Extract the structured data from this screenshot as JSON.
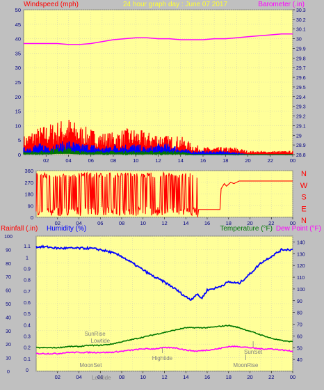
{
  "header": {
    "left_title": "Windspeed (mph)",
    "center_title": "24 hour graph day : June 07 2017",
    "right_title": "Barometer (.in)"
  },
  "x_ticks": [
    "02",
    "04",
    "06",
    "08",
    "10",
    "12",
    "14",
    "16",
    "18",
    "20",
    "22",
    "00"
  ],
  "colors": {
    "background": "#c0c0c0",
    "plot_bg": "#ffff99",
    "grid": "#d4d4b0",
    "red": "#ff0000",
    "blue": "#0000ff",
    "green": "#007700",
    "magenta": "#ff00ff",
    "wind_dir_red": "#ff0000",
    "title_yellow": "#ffff33"
  },
  "chart_data": [
    {
      "type": "line",
      "name": "wind-barometer",
      "title": "24 hour graph day : June 07 2017",
      "ylabel_left": "Windspeed (mph)",
      "ylabel_right": "Barometer (.in)",
      "x_range_hours": [
        0,
        24
      ],
      "ylim_left": [
        0,
        50
      ],
      "ylim_right": [
        28.8,
        30.3
      ],
      "y_ticks_left": [
        "0",
        "5",
        "10",
        "15",
        "20",
        "25",
        "30",
        "35",
        "40",
        "45",
        "50"
      ],
      "y_ticks_right": [
        "28.8",
        "28.9",
        "29",
        "29.1",
        "29.2",
        "29.3",
        "29.4",
        "29.5",
        "29.6",
        "29.7",
        "29.8",
        "29.9",
        "30",
        "30.1",
        "30.2",
        "30.3"
      ],
      "grid": true,
      "series": [
        {
          "axis": "right",
          "color": "#ff00ff",
          "x": [
            0,
            1,
            2,
            3,
            4,
            5,
            6,
            7,
            8,
            9,
            10,
            11,
            12,
            13,
            14,
            15,
            16,
            17,
            18,
            19,
            20,
            21,
            22,
            23,
            24
          ],
          "values": [
            29.95,
            29.95,
            29.95,
            29.95,
            29.94,
            29.94,
            29.95,
            29.97,
            29.99,
            30.0,
            30.01,
            30.01,
            30.0,
            30.0,
            29.99,
            29.99,
            29.99,
            30.0,
            30.0,
            30.01,
            30.02,
            30.03,
            30.04,
            30.05,
            30.05
          ]
        },
        {
          "axis": "left",
          "color": "#ff0000",
          "style": "gust",
          "x": [
            0,
            1,
            2,
            3,
            4,
            5,
            6,
            7,
            8,
            9,
            10,
            11,
            12,
            13,
            14,
            15,
            16,
            17,
            18,
            19,
            20,
            21,
            22,
            23,
            24
          ],
          "values": [
            5,
            7,
            8,
            9,
            10,
            8,
            7,
            6,
            6,
            7,
            7,
            6,
            6,
            5,
            5,
            3,
            2,
            2,
            2,
            2,
            1,
            1,
            1,
            1,
            1
          ]
        },
        {
          "axis": "left",
          "color": "#0000ff",
          "style": "avg",
          "x": [
            0,
            1,
            2,
            3,
            4,
            5,
            6,
            7,
            8,
            9,
            10,
            11,
            12,
            13,
            14,
            15,
            16,
            17,
            18,
            19,
            20,
            21,
            22,
            23,
            24
          ],
          "values": [
            2,
            3,
            3,
            3,
            4,
            3,
            3,
            2,
            3,
            3,
            3,
            2,
            3,
            3,
            2,
            1,
            1,
            1,
            1,
            0.5,
            0,
            0,
            0,
            0,
            0
          ]
        },
        {
          "axis": "left",
          "color": "#007700",
          "style": "min",
          "x": [
            0,
            1,
            2,
            3,
            4,
            5,
            6,
            7,
            8,
            9,
            10,
            11,
            12,
            13,
            14,
            15,
            16,
            17,
            18,
            19,
            20,
            21,
            22,
            23,
            24
          ],
          "values": [
            1,
            1,
            1,
            2,
            2,
            1,
            1,
            1,
            1,
            1,
            1,
            1,
            1,
            1,
            1,
            0,
            0,
            0,
            0,
            0,
            0,
            0,
            0,
            0,
            0
          ]
        }
      ]
    },
    {
      "type": "line",
      "name": "wind-direction",
      "ylim": [
        0,
        360
      ],
      "y_ticks": [
        "0",
        "90",
        "180",
        "270",
        "360"
      ],
      "direction_labels": [
        "N",
        "W",
        "S",
        "E",
        "N"
      ],
      "series": [
        {
          "color": "#ff0000",
          "x": [
            0,
            15.1,
            15.2,
            16.5,
            17.2,
            17.3,
            17.6,
            17.8,
            18.2,
            18.5,
            19.0,
            24
          ],
          "values": [
            180,
            0,
            60,
            60,
            60,
            220,
            260,
            240,
            270,
            260,
            280,
            280
          ]
        }
      ]
    },
    {
      "type": "line",
      "name": "rain-humidity-temperature",
      "ylabel_left_outer": "Rainfall (.in)",
      "ylabel_left_inner": "Humidity (%)",
      "ylabel_right_inner": "Temperature (°F)",
      "ylabel_right_outer": "Dew Point (°F)",
      "ylim_rain": [
        0,
        1.2
      ],
      "ylim_humidity": [
        0,
        100
      ],
      "ylim_temp": [
        30,
        145
      ],
      "y_ticks_humidity": [
        "0",
        "10",
        "20",
        "30",
        "40",
        "50",
        "60",
        "70",
        "80",
        "90",
        "100"
      ],
      "y_ticks_rain": [
        "0",
        "0.1",
        "0.2",
        "0.3",
        "0.4",
        "0.5",
        "0.6",
        "0.7",
        "0.8",
        "0.9",
        "1",
        "1.1"
      ],
      "y_ticks_temp": [
        "40",
        "50",
        "60",
        "70",
        "80",
        "90",
        "100",
        "110",
        "120",
        "130",
        "140"
      ],
      "series": [
        {
          "name": "Humidity (%)",
          "color": "#0000ff",
          "x": [
            0,
            1,
            2,
            3,
            4,
            5,
            6,
            7,
            8,
            9,
            10,
            11,
            12,
            13,
            14,
            14.5,
            15,
            15.5,
            16,
            17,
            18,
            19,
            20,
            21,
            22,
            23,
            24
          ],
          "values": [
            92,
            92,
            91,
            91,
            91,
            91,
            90,
            88,
            85,
            80,
            75,
            70,
            66,
            61,
            55,
            53,
            57,
            54,
            60,
            62,
            66,
            65,
            72,
            80,
            85,
            90,
            90
          ]
        },
        {
          "name": "Temperature (°F)",
          "color": "#007700",
          "x": [
            0,
            1,
            2,
            3,
            4,
            5,
            6,
            7,
            8,
            9,
            10,
            11,
            12,
            13,
            14,
            15,
            16,
            17,
            18,
            19,
            20,
            21,
            22,
            23,
            24
          ],
          "values": [
            50,
            50,
            50,
            51,
            51,
            52,
            52,
            53,
            55,
            57,
            59,
            61,
            63,
            65,
            67,
            67,
            67,
            68,
            69,
            67,
            64,
            61,
            58,
            56,
            55
          ]
        },
        {
          "name": "Dew Point (°F)",
          "color": "#ff00ff",
          "x": [
            0,
            1,
            2,
            3,
            4,
            5,
            6,
            7,
            8,
            9,
            10,
            11,
            12,
            13,
            14,
            15,
            16,
            17,
            18,
            19,
            20,
            21,
            22,
            23,
            24
          ],
          "values": [
            45,
            45,
            45,
            46,
            46,
            46,
            46,
            46,
            47,
            48,
            49,
            49,
            50,
            50,
            48,
            47,
            48,
            49,
            51,
            51,
            50,
            49,
            49,
            48,
            47
          ]
        }
      ],
      "annotations": [
        {
          "text": "SunRise",
          "x": 5.5
        },
        {
          "text": "Lowtide",
          "x": 6.0
        },
        {
          "text": "MoonSet",
          "x": 5.1
        },
        {
          "text": "Lowtide",
          "x": 6.1
        },
        {
          "text": "Hightide",
          "x": 11.8
        },
        {
          "text": "SunSet",
          "x": 20.3
        },
        {
          "text": "MoonRise",
          "x": 19.6
        }
      ]
    }
  ]
}
